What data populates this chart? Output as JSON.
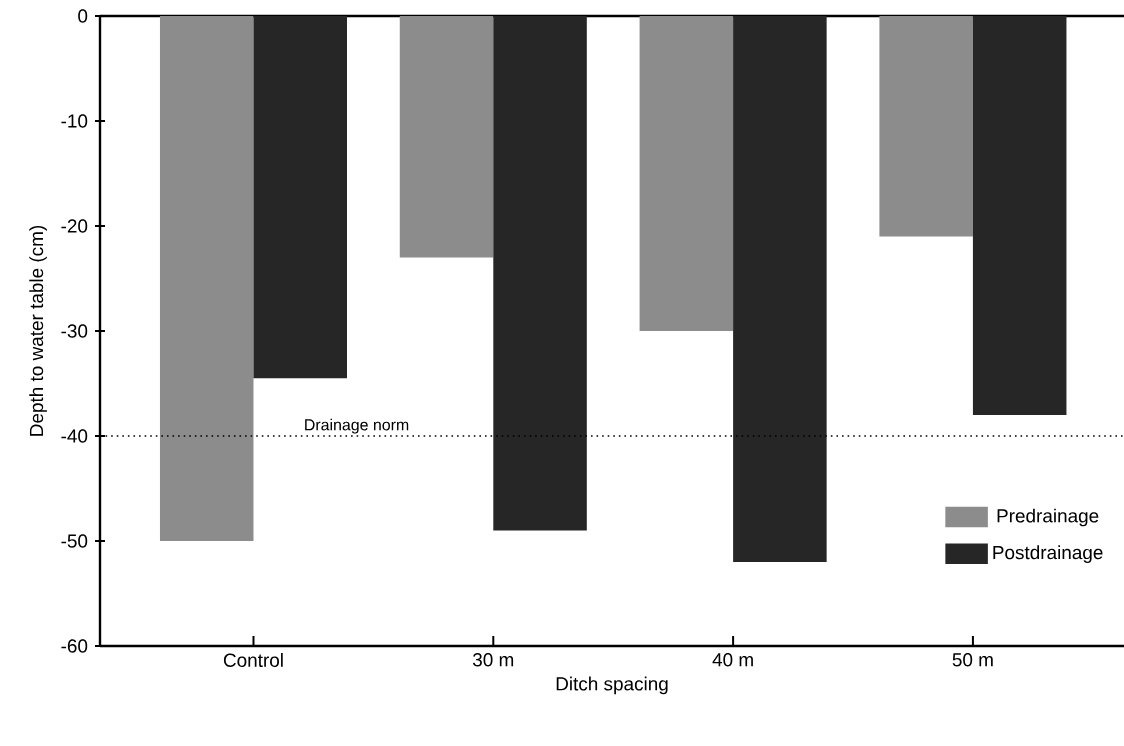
{
  "chart_data": {
    "type": "bar",
    "xlabel": "Ditch spacing",
    "ylabel": "Depth to water table (cm)",
    "categories": [
      "Control",
      "30 m",
      "40 m",
      "50 m"
    ],
    "series": [
      {
        "name": "Predrainage",
        "color": "#8c8c8c",
        "values": [
          -50,
          -23,
          -30,
          -21
        ]
      },
      {
        "name": "Postdrainage",
        "color": "#262626",
        "values": [
          -34.5,
          -49,
          -52,
          -38
        ]
      }
    ],
    "ylim": [
      -60,
      0
    ],
    "yticks": [
      -60,
      -50,
      -40,
      -30,
      -20,
      -10,
      0
    ],
    "ref_lines": [
      {
        "axis": "y",
        "value": -40,
        "label": "Drainage norm",
        "line_style": "dotted"
      }
    ],
    "legend": "bottom right",
    "grid": false
  }
}
